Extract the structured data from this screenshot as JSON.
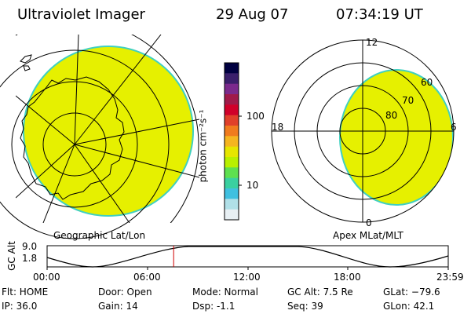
{
  "header": {
    "instrument": "Ultraviolet Imager",
    "date": "29 Aug 07",
    "time": "07:34:19 UT"
  },
  "left_panel": {
    "label": "Geographic Lat/Lon"
  },
  "right_panel": {
    "label": "Apex MLat/MLT",
    "mlt_labels": {
      "top": "12",
      "left": "18",
      "right": "6",
      "bottom": "0"
    },
    "mlat_labels": [
      "60",
      "70",
      "80"
    ]
  },
  "colorbar": {
    "unit_label": "photon cm⁻²s⁻¹",
    "tick_labels": [
      "100",
      "10"
    ],
    "colors": [
      "#000040",
      "#3a1f6b",
      "#7b2a8c",
      "#a01a4a",
      "#d0002a",
      "#e0402a",
      "#f07b1e",
      "#f5b520",
      "#e6e600",
      "#b8f000",
      "#5ee050",
      "#3ad0a0",
      "#40c0e0",
      "#b0e0e8",
      "#e8f0f4"
    ]
  },
  "colors": {
    "image_fill": "#e6f000",
    "image_edge": "#40d0c0",
    "orbit_marker": "#d00000"
  },
  "altitude_plot": {
    "ylabel": "GC Alt",
    "yticks": [
      "9.0",
      "1.8"
    ],
    "xticks": [
      "00:00",
      "06:00",
      "12:00",
      "18:00",
      "23:59"
    ],
    "current_time_hours": 7.57
  },
  "info": {
    "flt": "Flt: HOME",
    "ip": "IP: 36.0",
    "door": "Door: Open",
    "gain": "Gain: 14",
    "mode": "Mode: Normal",
    "dsp": "Dsp:    -1.1",
    "gc_alt": "GC Alt: 7.5 Re",
    "seq": "Seq: 39",
    "glat": "GLat: −79.6",
    "glon": "GLon:  42.1"
  }
}
